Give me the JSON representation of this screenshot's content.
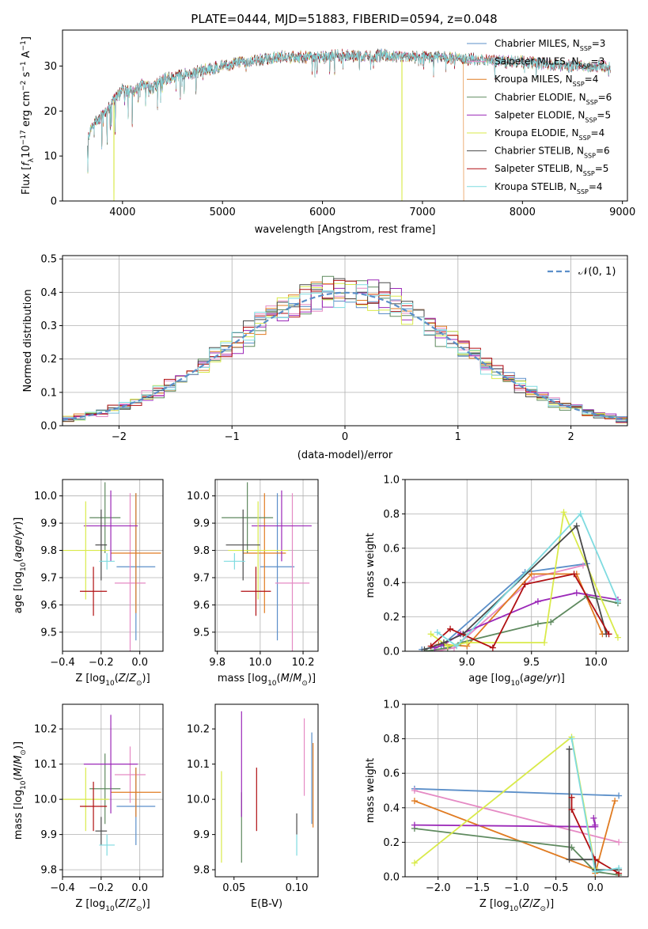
{
  "title": "PLATE=0444, MJD=51883, FIBERID=0594, z=0.048",
  "colors": {
    "Chabrier MILES": "#5b8fc9",
    "Salpeter MILES": "#e58ac4",
    "Kroupa MILES": "#e07b21",
    "Chabrier ELODIE": "#5f8a5f",
    "Salpeter ELODIE": "#9b28b8",
    "Kroupa ELODIE": "#d9ea4a",
    "Chabrier STELIB": "#4a4a4a",
    "Salpeter STELIB": "#b00f12",
    "Kroupa STELIB": "#7fdbe0"
  },
  "chart_data": [
    {
      "type": "line",
      "id": "spectrum",
      "xlabel": "wavelength [Angstrom, rest frame]",
      "ylabel_parts": [
        "Flux [",
        "f",
        "λ",
        "10",
        "−17",
        " erg cm",
        "−2",
        " s",
        "−1",
        " A",
        "−1",
        "]"
      ],
      "xlim": [
        3400,
        9050
      ],
      "ylim": [
        0,
        38
      ],
      "xticks": [
        "4000",
        "5000",
        "6000",
        "7000",
        "8000",
        "9000"
      ],
      "yticks": [
        "0",
        "10",
        "20",
        "30"
      ],
      "legend_position": "upper-right",
      "legend": [
        {
          "name": "Chabrier MILES",
          "n": "3"
        },
        {
          "name": "Salpeter MILES",
          "n": "3"
        },
        {
          "name": "Kroupa MILES",
          "n": "4"
        },
        {
          "name": "Chabrier ELODIE",
          "n": "6"
        },
        {
          "name": "Salpeter ELODIE",
          "n": "5"
        },
        {
          "name": "Kroupa ELODIE",
          "n": "4"
        },
        {
          "name": "Chabrier STELIB",
          "n": "6"
        },
        {
          "name": "Salpeter STELIB",
          "n": "5"
        },
        {
          "name": "Kroupa STELIB",
          "n": "4"
        }
      ],
      "n_label_parts": [
        "N",
        "SSP",
        "="
      ],
      "continuum": [
        [
          3650,
          13
        ],
        [
          3700,
          17
        ],
        [
          3800,
          19
        ],
        [
          3900,
          22
        ],
        [
          4000,
          25
        ],
        [
          4100,
          24
        ],
        [
          4200,
          26
        ],
        [
          4300,
          25
        ],
        [
          4400,
          27
        ],
        [
          4600,
          28
        ],
        [
          4800,
          29
        ],
        [
          5000,
          30
        ],
        [
          5200,
          31
        ],
        [
          5400,
          31.5
        ],
        [
          5600,
          32
        ],
        [
          5800,
          32
        ],
        [
          6000,
          32
        ],
        [
          6200,
          32.5
        ],
        [
          6400,
          32
        ],
        [
          6600,
          32.5
        ],
        [
          6800,
          32
        ],
        [
          7000,
          32
        ],
        [
          7200,
          32
        ],
        [
          7400,
          31.5
        ],
        [
          7600,
          31.5
        ],
        [
          7800,
          31
        ],
        [
          8000,
          31
        ],
        [
          8200,
          30.5
        ],
        [
          8400,
          30
        ],
        [
          8600,
          30
        ],
        [
          8800,
          30
        ],
        [
          8880,
          29.5
        ]
      ],
      "drops": [
        {
          "series": "Kroupa ELODIE",
          "x": 3915
        },
        {
          "series": "Kroupa ELODIE",
          "x": 6795
        },
        {
          "series": "Kroupa MILES",
          "x": 7415
        }
      ]
    },
    {
      "type": "step",
      "id": "residuals",
      "xlabel": "(data-model)/error",
      "ylabel": "Normed distribution",
      "xlim": [
        -2.5,
        2.5
      ],
      "ylim": [
        0,
        0.51
      ],
      "xticks": [
        "−2",
        "−1",
        "0",
        "1",
        "2"
      ],
      "yticks": [
        "0.0",
        "0.1",
        "0.2",
        "0.3",
        "0.4",
        "0.5"
      ],
      "grid": true,
      "legend": "𝒩(0, 1)",
      "legend_position": "upper-right",
      "normal_color": "#5b8fc9"
    },
    {
      "type": "errorbar",
      "id": "age_vs_Z",
      "xlabel_parts": [
        "Z [log",
        "10",
        "(",
        "Z",
        "/",
        "Z",
        "⊙",
        ")]"
      ],
      "ylabel_parts": [
        "age  [log",
        "10",
        "(",
        "age",
        "/",
        "yr",
        ")]"
      ],
      "xlim": [
        -0.4,
        0.12
      ],
      "ylim": [
        9.43,
        10.06
      ],
      "xticks": [
        "−0.4",
        "−0.2",
        "0.0"
      ],
      "yticks": [
        "9.5",
        "9.6",
        "9.7",
        "9.8",
        "9.9",
        "10.0"
      ],
      "grid": true,
      "points": [
        {
          "series": "Chabrier MILES",
          "x": -0.02,
          "y": 9.74,
          "xerr": 0.1,
          "yerr": 0.27
        },
        {
          "series": "Salpeter MILES",
          "x": -0.05,
          "y": 9.68,
          "xerr": 0.08,
          "yerr": 0.33
        },
        {
          "series": "Kroupa MILES",
          "x": -0.02,
          "y": 9.79,
          "xerr": 0.13,
          "yerr": 0.22
        },
        {
          "series": "Chabrier ELODIE",
          "x": -0.18,
          "y": 9.92,
          "xerr": 0.08,
          "yerr": 0.13
        },
        {
          "series": "Salpeter ELODIE",
          "x": -0.15,
          "y": 9.89,
          "xerr": 0.14,
          "yerr": 0.13
        },
        {
          "series": "Kroupa ELODIE",
          "x": -0.28,
          "y": 9.8,
          "xerr": 0.12,
          "yerr": 0.18
        },
        {
          "series": "Chabrier STELIB",
          "x": -0.2,
          "y": 9.82,
          "xerr": 0.03,
          "yerr": 0.13
        },
        {
          "series": "Salpeter STELIB",
          "x": -0.24,
          "y": 9.65,
          "xerr": 0.07,
          "yerr": 0.09
        },
        {
          "series": "Kroupa STELIB",
          "x": -0.17,
          "y": 9.76,
          "xerr": 0.04,
          "yerr": 0.03
        }
      ]
    },
    {
      "type": "errorbar",
      "id": "age_vs_mass",
      "xlabel_parts": [
        "mass [log",
        "10",
        "(",
        "M",
        "/",
        "M",
        "⊙",
        ")]"
      ],
      "xlim": [
        9.79,
        10.27
      ],
      "ylim": [
        9.43,
        10.06
      ],
      "xticks": [
        "9.8",
        "10.0",
        "10.2"
      ],
      "yticks": [
        "9.5",
        "9.6",
        "9.7",
        "9.8",
        "9.9",
        "10.0"
      ],
      "grid": true,
      "points": [
        {
          "series": "Chabrier MILES",
          "x": 10.08,
          "y": 9.74,
          "xerr": 0.08,
          "yerr": 0.27
        },
        {
          "series": "Salpeter MILES",
          "x": 10.15,
          "y": 9.68,
          "xerr": 0.08,
          "yerr": 0.33
        },
        {
          "series": "Kroupa MILES",
          "x": 10.02,
          "y": 9.79,
          "xerr": 0.1,
          "yerr": 0.22
        },
        {
          "series": "Chabrier ELODIE",
          "x": 9.94,
          "y": 9.92,
          "xerr": 0.12,
          "yerr": 0.13
        },
        {
          "series": "Salpeter ELODIE",
          "x": 10.1,
          "y": 9.89,
          "xerr": 0.14,
          "yerr": 0.13
        },
        {
          "series": "Kroupa ELODIE",
          "x": 9.99,
          "y": 9.8,
          "xerr": 0.14,
          "yerr": 0.18
        },
        {
          "series": "Chabrier STELIB",
          "x": 9.92,
          "y": 9.82,
          "xerr": 0.08,
          "yerr": 0.13
        },
        {
          "series": "Salpeter STELIB",
          "x": 9.98,
          "y": 9.65,
          "xerr": 0.07,
          "yerr": 0.09
        },
        {
          "series": "Kroupa STELIB",
          "x": 9.88,
          "y": 9.76,
          "xerr": 0.05,
          "yerr": 0.03
        }
      ]
    },
    {
      "type": "line",
      "id": "massweight_vs_age",
      "xlabel_parts": [
        "age  [log",
        "10",
        "(",
        "age",
        "/",
        "yr",
        ")]"
      ],
      "ylabel": "mass weight",
      "xlim": [
        8.52,
        10.25
      ],
      "ylim": [
        0,
        1
      ],
      "xticks": [
        "9.0",
        "9.5",
        "10.0"
      ],
      "yticks": [
        "0.0",
        "0.2",
        "0.4",
        "0.6",
        "0.8",
        "1.0"
      ],
      "grid": true,
      "series": [
        {
          "name": "Chabrier MILES",
          "x": [
            8.65,
            8.8,
            9.45,
            9.93
          ],
          "y": [
            0.01,
            0.03,
            0.46,
            0.51
          ]
        },
        {
          "name": "Salpeter MILES",
          "x": [
            8.76,
            8.9,
            9.52,
            9.9
          ],
          "y": [
            0.0,
            0.02,
            0.43,
            0.5
          ]
        },
        {
          "name": "Kroupa MILES",
          "x": [
            8.78,
            9.0,
            9.5,
            9.85,
            10.05
          ],
          "y": [
            0.04,
            0.03,
            0.45,
            0.45,
            0.1
          ]
        },
        {
          "name": "Chabrier ELODIE",
          "x": [
            8.68,
            8.85,
            8.95,
            9.55,
            9.65,
            9.93,
            10.17
          ],
          "y": [
            0.0,
            0.02,
            0.05,
            0.16,
            0.17,
            0.32,
            0.28
          ]
        },
        {
          "name": "Salpeter ELODIE",
          "x": [
            8.75,
            8.82,
            8.95,
            9.55,
            9.85,
            10.17
          ],
          "y": [
            0.02,
            0.04,
            0.1,
            0.29,
            0.34,
            0.3
          ]
        },
        {
          "name": "Kroupa ELODIE",
          "x": [
            8.72,
            8.85,
            9.0,
            9.6,
            9.75,
            10.17
          ],
          "y": [
            0.1,
            0.03,
            0.05,
            0.05,
            0.81,
            0.08
          ]
        },
        {
          "name": "Chabrier STELIB",
          "x": [
            8.67,
            8.82,
            8.97,
            9.85,
            10.08
          ],
          "y": [
            0.01,
            0.05,
            0.1,
            0.73,
            0.1
          ]
        },
        {
          "name": "Salpeter STELIB",
          "x": [
            8.72,
            8.87,
            9.2,
            9.45,
            9.83,
            10.1
          ],
          "y": [
            0.03,
            0.13,
            0.02,
            0.39,
            0.45,
            0.1
          ]
        },
        {
          "name": "Kroupa STELIB",
          "x": [
            8.77,
            8.92,
            9.88,
            10.17
          ],
          "y": [
            0.11,
            0.03,
            0.8,
            0.29
          ]
        }
      ]
    },
    {
      "type": "errorbar",
      "id": "mass_vs_Z",
      "xlabel_parts": [
        "Z [log",
        "10",
        "(",
        "Z",
        "/",
        "Z",
        "⊙",
        ")]"
      ],
      "ylabel_parts": [
        "mass [log",
        "10",
        "(",
        "M",
        "/",
        "M",
        "⊙",
        ")]"
      ],
      "xlim": [
        -0.4,
        0.12
      ],
      "ylim": [
        9.78,
        10.27
      ],
      "xticks": [
        "−0.4",
        "−0.2",
        "0.0"
      ],
      "yticks": [
        "9.8",
        "9.9",
        "10.0",
        "10.1",
        "10.2"
      ],
      "grid": true,
      "points": [
        {
          "series": "Chabrier MILES",
          "x": -0.02,
          "y": 9.98,
          "xerr": 0.1,
          "yerr": 0.11
        },
        {
          "series": "Salpeter MILES",
          "x": -0.05,
          "y": 10.07,
          "xerr": 0.08,
          "yerr": 0.08
        },
        {
          "series": "Kroupa MILES",
          "x": -0.02,
          "y": 10.02,
          "xerr": 0.13,
          "yerr": 0.07
        },
        {
          "series": "Chabrier ELODIE",
          "x": -0.18,
          "y": 10.03,
          "xerr": 0.08,
          "yerr": 0.1
        },
        {
          "series": "Salpeter ELODIE",
          "x": -0.15,
          "y": 10.1,
          "xerr": 0.14,
          "yerr": 0.14
        },
        {
          "series": "Kroupa ELODIE",
          "x": -0.28,
          "y": 10.0,
          "xerr": 0.12,
          "yerr": 0.09
        },
        {
          "series": "Chabrier STELIB",
          "x": -0.2,
          "y": 9.91,
          "xerr": 0.03,
          "yerr": 0.04
        },
        {
          "series": "Salpeter STELIB",
          "x": -0.24,
          "y": 9.98,
          "xerr": 0.07,
          "yerr": 0.07
        },
        {
          "series": "Kroupa STELIB",
          "x": -0.17,
          "y": 9.87,
          "xerr": 0.04,
          "yerr": 0.03
        }
      ]
    },
    {
      "type": "errorbar",
      "id": "mass_vs_ebv",
      "xlabel": "E(B-V)",
      "xlim": [
        0.035,
        0.117
      ],
      "ylim": [
        9.78,
        10.27
      ],
      "xticks": [
        "0.05",
        "0.10"
      ],
      "yticks": [
        "9.8",
        "9.9",
        "10.0",
        "10.1",
        "10.2"
      ],
      "grid": false,
      "points": [
        {
          "series": "Chabrier MILES",
          "x": 0.112,
          "y": 10.06,
          "xerr": 0,
          "yerr": 0.13
        },
        {
          "series": "Salpeter MILES",
          "x": 0.106,
          "y": 10.12,
          "xerr": 0,
          "yerr": 0.11
        },
        {
          "series": "Kroupa MILES",
          "x": 0.113,
          "y": 10.04,
          "xerr": 0,
          "yerr": 0.12
        },
        {
          "series": "Chabrier ELODIE",
          "x": 0.056,
          "y": 9.92,
          "xerr": 0,
          "yerr": 0.1
        },
        {
          "series": "Salpeter ELODIE",
          "x": 0.056,
          "y": 10.1,
          "xerr": 0,
          "yerr": 0.15
        },
        {
          "series": "Kroupa ELODIE",
          "x": 0.04,
          "y": 9.95,
          "xerr": 0,
          "yerr": 0.13
        },
        {
          "series": "Chabrier STELIB",
          "x": 0.1,
          "y": 9.93,
          "xerr": 0,
          "yerr": 0.03
        },
        {
          "series": "Salpeter STELIB",
          "x": 0.068,
          "y": 10.0,
          "xerr": 0,
          "yerr": 0.09
        },
        {
          "series": "Kroupa STELIB",
          "x": 0.1,
          "y": 9.87,
          "xerr": 0,
          "yerr": 0.03
        }
      ]
    },
    {
      "type": "line",
      "id": "massweight_vs_Z",
      "xlabel_parts": [
        "Z [log",
        "10",
        "(",
        "Z",
        "/",
        "Z",
        "⊙",
        ")]"
      ],
      "ylabel": "mass weight",
      "xlim": [
        -2.42,
        0.42
      ],
      "ylim": [
        0,
        1
      ],
      "xticks": [
        "−2.0",
        "−1.5",
        "−1.0",
        "−0.5",
        "0.0"
      ],
      "yticks": [
        "0.0",
        "0.2",
        "0.4",
        "0.6",
        "0.8",
        "1.0"
      ],
      "grid": true,
      "series": [
        {
          "name": "Chabrier MILES",
          "x": [
            -2.3,
            0.3
          ],
          "y": [
            0.51,
            0.47
          ]
        },
        {
          "name": "Salpeter MILES",
          "x": [
            -2.3,
            0.3
          ],
          "y": [
            0.5,
            0.2
          ]
        },
        {
          "name": "Kroupa MILES",
          "x": [
            -2.3,
            0.0,
            0.0,
            0.25
          ],
          "y": [
            0.44,
            0.04,
            0.02,
            0.44
          ]
        },
        {
          "name": "Chabrier ELODIE",
          "x": [
            -2.3,
            -0.3,
            0.0,
            0.3
          ],
          "y": [
            0.28,
            0.17,
            0.03,
            0.01
          ]
        },
        {
          "name": "Salpeter ELODIE",
          "x": [
            -2.3,
            0.0,
            -0.02,
            0.0
          ],
          "y": [
            0.3,
            0.29,
            0.34,
            0.3
          ]
        },
        {
          "name": "Kroupa ELODIE",
          "x": [
            -2.3,
            -0.3,
            0.0
          ],
          "y": [
            0.08,
            0.81,
            0.05
          ]
        },
        {
          "name": "Chabrier STELIB",
          "x": [
            -0.33,
            -0.33,
            0.0,
            0.0,
            0.3
          ],
          "y": [
            0.74,
            0.1,
            0.1,
            0.04,
            0.04
          ]
        },
        {
          "name": "Salpeter STELIB",
          "x": [
            -0.3,
            -0.3,
            0.0,
            0.3
          ],
          "y": [
            0.46,
            0.39,
            0.1,
            0.02
          ]
        },
        {
          "name": "Kroupa STELIB",
          "x": [
            -0.3,
            0.0,
            0.3
          ],
          "y": [
            0.8,
            0.03,
            0.05
          ]
        }
      ]
    }
  ]
}
